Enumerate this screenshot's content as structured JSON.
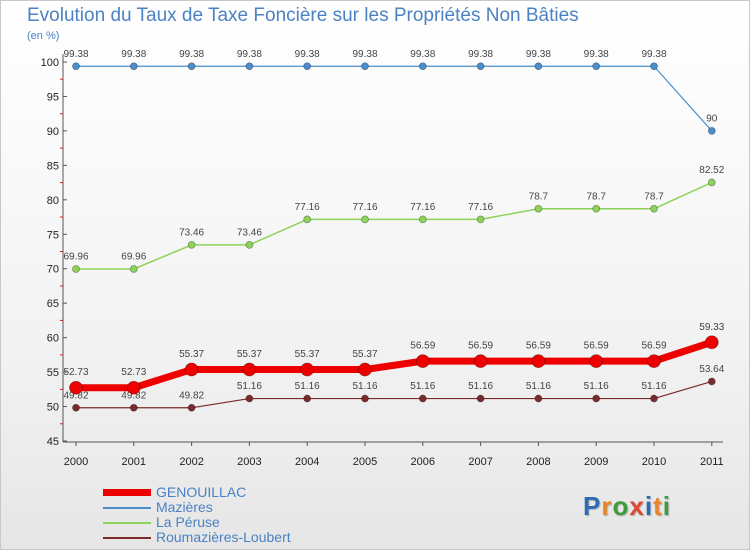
{
  "title": "Evolution du Taux de Taxe Foncière sur les Propriétés Non Bâties",
  "unit_label": "(en %)",
  "logo": {
    "text": "Proxiti",
    "letter_colors": [
      "#2b6cb5",
      "#e9842a",
      "#3f9b3d",
      "#e0452e",
      "#2b6cb5",
      "#e9842a",
      "#3f9b3d"
    ]
  },
  "chart_data": {
    "type": "line",
    "title": "Evolution du Taux de Taxe Foncière sur les Propriétés Non Bâties",
    "ylabel": "(en %)",
    "xlabel": "",
    "ylim": [
      45,
      100
    ],
    "yticks": [
      45,
      50,
      55,
      60,
      65,
      70,
      75,
      80,
      85,
      90,
      95,
      100
    ],
    "grid": false,
    "legend_position": "bottom-left",
    "x": [
      "2000",
      "2001",
      "2002",
      "2003",
      "2004",
      "2005",
      "2006",
      "2007",
      "2008",
      "2009",
      "2010",
      "2011"
    ],
    "series": [
      {
        "name": "GENOUILLAC",
        "color": "#ee0000",
        "values": [
          52.73,
          52.73,
          55.37,
          55.37,
          55.37,
          55.37,
          56.59,
          56.59,
          56.59,
          56.59,
          56.59,
          59.33
        ],
        "labels": [
          "52.73",
          "52.73",
          "55.37",
          "55.37",
          "55.37",
          "55.37",
          "56.59",
          "56.59",
          "56.59",
          "56.59",
          "56.59",
          "59.33"
        ]
      },
      {
        "name": "Mazières",
        "color": "#4a8fcc",
        "values": [
          99.38,
          99.38,
          99.38,
          99.38,
          99.38,
          99.38,
          99.38,
          99.38,
          99.38,
          99.38,
          99.38,
          90
        ],
        "labels": [
          "99.38",
          "99.38",
          "99.38",
          "99.38",
          "99.38",
          "99.38",
          "99.38",
          "99.38",
          "99.38",
          "99.38",
          "99.38",
          "90"
        ]
      },
      {
        "name": "La Péruse",
        "color": "#8dd35a",
        "values": [
          69.96,
          69.96,
          73.46,
          73.46,
          77.16,
          77.16,
          77.16,
          77.16,
          78.7,
          78.7,
          78.7,
          82.52
        ],
        "labels": [
          "69.96",
          "69.96",
          "73.46",
          "73.46",
          "77.16",
          "77.16",
          "77.16",
          "77.16",
          "78.7",
          "78.7",
          "78.7",
          "82.52"
        ]
      },
      {
        "name": "Roumazières-Loubert",
        "color": "#7a2a2a",
        "values": [
          49.82,
          49.82,
          49.82,
          51.16,
          51.16,
          51.16,
          51.16,
          51.16,
          51.16,
          51.16,
          51.16,
          53.64
        ],
        "labels": [
          "49.82",
          "49.82",
          "49.82",
          "51.16",
          "51.16",
          "51.16",
          "51.16",
          "51.16",
          "51.16",
          "51.16",
          "51.16",
          "53.64"
        ]
      }
    ]
  }
}
